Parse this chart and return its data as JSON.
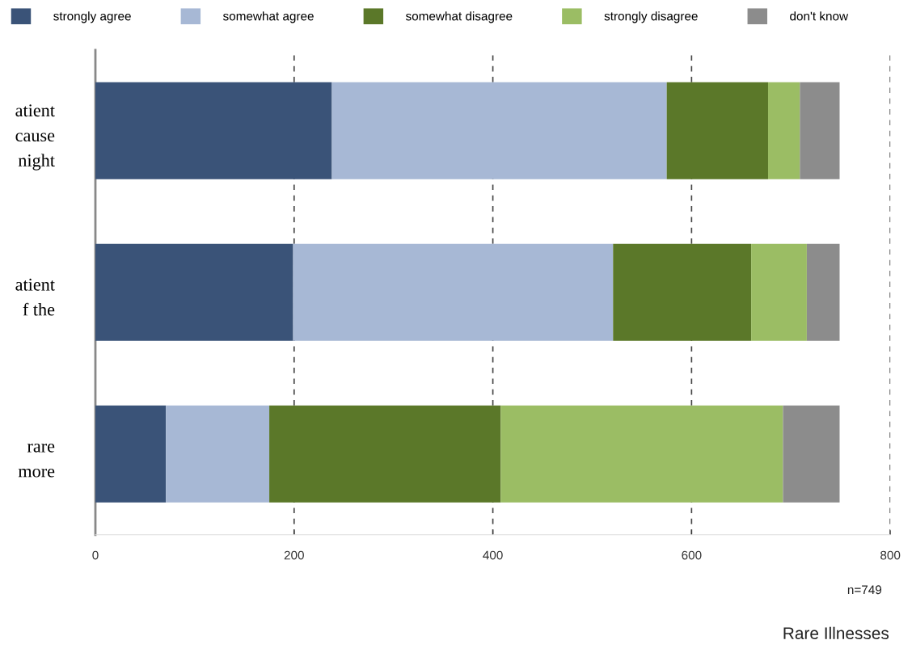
{
  "chart_data": {
    "type": "bar",
    "orientation": "horizontal",
    "stacked": true,
    "categories": [
      "atient\ncause\nnight",
      "atient\nf the",
      "rare\nmore"
    ],
    "series": [
      {
        "name": "strongly agree",
        "color": "#3a5378",
        "values": [
          238,
          199,
          71
        ]
      },
      {
        "name": "somewhat agree",
        "color": "#a7b8d5",
        "values": [
          337,
          322,
          104
        ]
      },
      {
        "name": "somewhat disagree",
        "color": "#5b7829",
        "values": [
          102,
          139,
          233
        ]
      },
      {
        "name": "strongly disagree",
        "color": "#9bbd64",
        "values": [
          32,
          56,
          284
        ]
      },
      {
        "name": "don't know",
        "color": "#8c8c8c",
        "values": [
          40,
          33,
          57
        ]
      }
    ],
    "xlim": [
      0,
      800
    ],
    "xticks": [
      0,
      200,
      400,
      600,
      800
    ],
    "grid": "x",
    "legend": "top",
    "annotations": [
      "n=749",
      "Rare Illnesses"
    ]
  }
}
